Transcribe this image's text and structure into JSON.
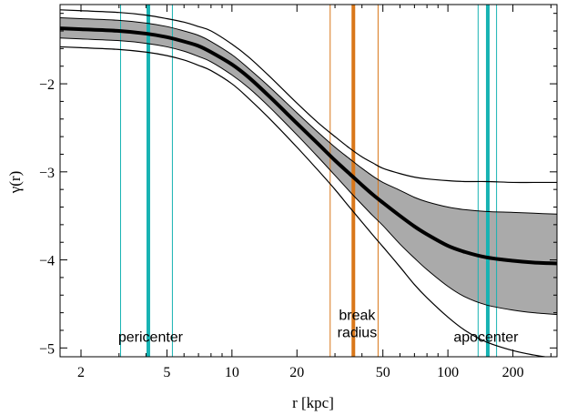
{
  "chart_data": {
    "type": "line",
    "title": "",
    "xlabel": "r [kpc]",
    "ylabel": "γ(r)",
    "xscale": "log",
    "xlim": [
      1.6,
      320
    ],
    "ylim": [
      -5.1,
      -1.1
    ],
    "grid": false,
    "x_ticks": [
      {
        "value": 2,
        "label": "2"
      },
      {
        "value": 5,
        "label": "5"
      },
      {
        "value": 10,
        "label": "10"
      },
      {
        "value": 20,
        "label": "20"
      },
      {
        "value": 50,
        "label": "50"
      },
      {
        "value": 100,
        "label": "100"
      },
      {
        "value": 200,
        "label": "200"
      }
    ],
    "y_ticks": [
      {
        "value": -2,
        "label": "−2"
      },
      {
        "value": -3,
        "label": "−3"
      },
      {
        "value": -4,
        "label": "−4"
      },
      {
        "value": -5,
        "label": "−5"
      }
    ],
    "x": [
      1.6,
      2,
      3,
      4,
      5,
      6,
      7,
      8,
      10,
      12,
      15,
      20,
      25,
      30,
      35,
      40,
      45,
      50,
      60,
      70,
      80,
      100,
      120,
      150,
      200,
      250,
      320
    ],
    "series": [
      {
        "role": "outer-upper",
        "color": "#000000",
        "values": [
          -1.16,
          -1.17,
          -1.19,
          -1.22,
          -1.26,
          -1.3,
          -1.35,
          -1.4,
          -1.55,
          -1.7,
          -1.92,
          -2.22,
          -2.44,
          -2.6,
          -2.73,
          -2.83,
          -2.9,
          -2.96,
          -3.02,
          -3.06,
          -3.08,
          -3.1,
          -3.11,
          -3.11,
          -3.12,
          -3.12,
          -3.12
        ]
      },
      {
        "role": "band-upper",
        "color": "#000000",
        "values": [
          -1.25,
          -1.26,
          -1.28,
          -1.31,
          -1.35,
          -1.4,
          -1.45,
          -1.52,
          -1.67,
          -1.83,
          -2.04,
          -2.33,
          -2.55,
          -2.72,
          -2.85,
          -2.96,
          -3.05,
          -3.12,
          -3.21,
          -3.29,
          -3.34,
          -3.4,
          -3.43,
          -3.45,
          -3.46,
          -3.47,
          -3.48
        ]
      },
      {
        "role": "median",
        "color": "#000000",
        "values": [
          -1.37,
          -1.38,
          -1.4,
          -1.43,
          -1.47,
          -1.52,
          -1.57,
          -1.64,
          -1.78,
          -1.93,
          -2.15,
          -2.45,
          -2.68,
          -2.87,
          -3.02,
          -3.15,
          -3.26,
          -3.35,
          -3.5,
          -3.62,
          -3.71,
          -3.84,
          -3.91,
          -3.97,
          -4.01,
          -4.03,
          -4.04
        ]
      },
      {
        "role": "band-lower",
        "color": "#000000",
        "values": [
          -1.48,
          -1.49,
          -1.51,
          -1.54,
          -1.58,
          -1.63,
          -1.69,
          -1.75,
          -1.9,
          -2.05,
          -2.27,
          -2.58,
          -2.83,
          -3.04,
          -3.22,
          -3.37,
          -3.5,
          -3.61,
          -3.82,
          -3.98,
          -4.11,
          -4.3,
          -4.42,
          -4.51,
          -4.57,
          -4.6,
          -4.62
        ]
      },
      {
        "role": "outer-lower",
        "color": "#000000",
        "values": [
          -1.58,
          -1.59,
          -1.61,
          -1.64,
          -1.68,
          -1.73,
          -1.79,
          -1.85,
          -2.0,
          -2.17,
          -2.4,
          -2.72,
          -2.98,
          -3.2,
          -3.4,
          -3.57,
          -3.72,
          -3.85,
          -4.08,
          -4.28,
          -4.43,
          -4.65,
          -4.8,
          -4.93,
          -5.03,
          -5.08,
          -5.12
        ]
      }
    ],
    "band_color": "#aaaaaa",
    "vertical_markers": [
      {
        "label": "pericenter",
        "label_lines": [
          "pericenter"
        ],
        "center": 4.1,
        "lower": 3.05,
        "upper": 5.3,
        "color": "#17b3b3",
        "label_x": 4.2,
        "label_y": -4.93
      },
      {
        "label": "break radius",
        "label_lines": [
          "break",
          "radius"
        ],
        "center": 36.5,
        "lower": 28.5,
        "upper": 47.5,
        "color": "#d9771a",
        "label_x": 38,
        "label_y": -4.68
      },
      {
        "label": "apocenter",
        "label_lines": [
          "apocenter"
        ],
        "center": 153,
        "lower": 138,
        "upper": 168,
        "color": "#17b3b3",
        "label_x": 150,
        "label_y": -4.93
      }
    ]
  }
}
